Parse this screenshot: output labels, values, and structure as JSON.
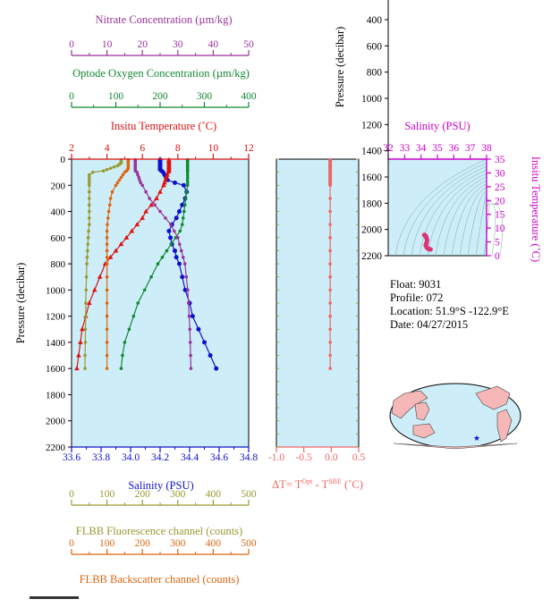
{
  "colors": {
    "nitrate": "#993399",
    "oxygen": "#118833",
    "temperature": "#dd1111",
    "salinity": "#1111cc",
    "fluorescence": "#999933",
    "backscatter": "#dd6611",
    "delta_t": "#ee6666",
    "plot_bg": "#cdeef8",
    "ts_axis": "#cc00cc",
    "black": "#000000"
  },
  "axes": {
    "nitrate": {
      "label": "Nitrate Concentration (µm/kg)",
      "ticks": [
        "0",
        "10",
        "20",
        "30",
        "40",
        "50"
      ]
    },
    "oxygen": {
      "label": "Optode Oxygen Concentration (µm/kg)",
      "ticks": [
        "0",
        "100",
        "200",
        "300",
        "400"
      ]
    },
    "temperature": {
      "label": "Insitu Temperature (˚C)",
      "ticks": [
        "2",
        "4",
        "6",
        "8",
        "10",
        "12"
      ]
    },
    "salinity": {
      "label": "Salinity (PSU)",
      "ticks": [
        "33.6",
        "33.8",
        "34.0",
        "34.2",
        "34.4",
        "34.6",
        "34.8"
      ]
    },
    "fluorescence": {
      "label": "FLBB Fluorescence channel (counts)",
      "ticks": [
        "0",
        "100",
        "200",
        "300",
        "400",
        "500"
      ]
    },
    "backscatter": {
      "label": "FLBB Backscatter channel (counts)",
      "ticks": [
        "0",
        "100",
        "200",
        "300",
        "400",
        "500"
      ]
    },
    "pressure": {
      "label": "Pressure (decibar)",
      "ticks": [
        "0",
        "200",
        "400",
        "600",
        "800",
        "1000",
        "1200",
        "1400",
        "1600",
        "1800",
        "2000",
        "2200"
      ]
    },
    "delta_t": {
      "label_main": "ΔT= T",
      "sup1": "Opt",
      "label_mid": " - T",
      "sup2": "SBE",
      "label_end": " (˚C)",
      "ticks": [
        "-1.0",
        "-0.5",
        "0.0",
        "0.5"
      ]
    },
    "ts_salinity": {
      "label": "Salinity (PSU)",
      "ticks": [
        "32",
        "33",
        "34",
        "35",
        "36",
        "37",
        "38"
      ]
    },
    "ts_temperature": {
      "label": "Insitu Temperature (˚C)",
      "ticks": [
        "0",
        "5",
        "10",
        "15",
        "20",
        "25",
        "30",
        "35"
      ]
    },
    "ts_pressure": {
      "ticks": [
        "400",
        "600",
        "800",
        "1000",
        "1200",
        "1400",
        "1600",
        "1800",
        "2000",
        "2200"
      ]
    }
  },
  "info": {
    "float": "Float:  9031",
    "profile": "Profile:  072",
    "location": "Location:  51.9°S  -122.9°E",
    "date": "Date:  04/27/2015"
  },
  "chart_data": [
    {
      "type": "line",
      "ylabel": "Pressure (decibar)",
      "ylim": [
        2200,
        0
      ],
      "pressure_levels": [
        5,
        10,
        20,
        30,
        40,
        50,
        60,
        70,
        80,
        90,
        100,
        120,
        140,
        160,
        180,
        200,
        250,
        300,
        350,
        400,
        450,
        500,
        550,
        600,
        650,
        700,
        750,
        800,
        900,
        1000,
        1100,
        1200,
        1300,
        1400,
        1500,
        1600
      ],
      "series": [
        {
          "name": "Salinity",
          "xlim": [
            33.6,
            34.8
          ],
          "values": [
            34.2,
            34.2,
            34.2,
            34.2,
            34.2,
            34.2,
            34.2,
            34.2,
            34.2,
            34.21,
            34.22,
            34.23,
            34.24,
            34.25,
            34.3,
            34.36,
            34.38,
            34.37,
            34.35,
            34.33,
            34.31,
            34.28,
            34.26,
            34.27,
            34.28,
            34.3,
            34.31,
            34.33,
            34.35,
            34.37,
            34.4,
            34.42,
            34.46,
            34.5,
            34.54,
            34.58
          ]
        },
        {
          "name": "Insitu Temperature",
          "xlim": [
            2,
            12
          ],
          "values": [
            7.5,
            7.5,
            7.5,
            7.5,
            7.5,
            7.5,
            7.5,
            7.5,
            7.5,
            7.5,
            7.45,
            7.4,
            7.35,
            7.3,
            7.25,
            7.2,
            7.0,
            6.8,
            6.5,
            6.2,
            6.0,
            5.7,
            5.4,
            5.1,
            4.8,
            4.5,
            4.2,
            3.9,
            3.6,
            3.3,
            3.0,
            2.8,
            2.6,
            2.5,
            2.4,
            2.3
          ]
        },
        {
          "name": "Optode Oxygen Concentration",
          "xlim": [
            0,
            400
          ],
          "values": [
            262,
            262,
            262,
            262,
            262,
            262,
            262,
            262,
            262,
            262,
            262,
            262,
            262,
            262,
            262,
            262,
            260,
            258,
            256,
            254,
            252,
            250,
            245,
            235,
            225,
            215,
            205,
            195,
            180,
            165,
            150,
            140,
            130,
            120,
            115,
            112
          ]
        },
        {
          "name": "Nitrate Concentration",
          "xlim": [
            0,
            50
          ],
          "values": [
            18,
            18,
            18,
            18,
            18,
            18,
            18,
            18,
            18,
            18,
            18.5,
            18.7,
            19,
            19.2,
            19.5,
            20,
            21,
            22,
            23.5,
            25,
            26.5,
            28,
            29,
            30,
            30.5,
            31,
            31.5,
            32,
            32.4,
            32.8,
            33,
            33.2,
            33.4,
            33.5,
            33.6,
            33.7
          ]
        },
        {
          "name": "FLBB Fluorescence channel",
          "xlim": [
            0,
            500
          ],
          "values": [
            140,
            140,
            140,
            140,
            135,
            130,
            120,
            110,
            100,
            90,
            60,
            50,
            50,
            50,
            50,
            50,
            50,
            50,
            50,
            50,
            50,
            50,
            48,
            47,
            46,
            45,
            44,
            43,
            42,
            41,
            40,
            40,
            39,
            39,
            38,
            38
          ]
        },
        {
          "name": "FLBB Backscatter channel",
          "xlim": [
            0,
            500
          ],
          "values": [
            160,
            160,
            160,
            160,
            160,
            160,
            160,
            160,
            158,
            155,
            150,
            145,
            140,
            135,
            130,
            125,
            115,
            110,
            108,
            105,
            103,
            101,
            100,
            100,
            100,
            100,
            100,
            100,
            100,
            100,
            100,
            100,
            100,
            100,
            100,
            100
          ]
        }
      ]
    },
    {
      "type": "line",
      "xlim": [
        -1.0,
        0.5
      ],
      "ylim": [
        2200,
        0
      ],
      "series": [
        {
          "name": "ΔT",
          "pressure": [
            5,
            100,
            200,
            300,
            400,
            500,
            600,
            700,
            800,
            900,
            1000,
            1100,
            1200,
            1300,
            1400,
            1500,
            1600
          ],
          "values": [
            -0.02,
            -0.02,
            -0.02,
            -0.02,
            -0.02,
            -0.02,
            -0.02,
            -0.02,
            -0.02,
            -0.02,
            -0.02,
            -0.02,
            -0.02,
            -0.02,
            -0.02,
            -0.02,
            -0.02
          ]
        }
      ]
    },
    {
      "type": "scatter",
      "xlim": [
        32,
        38
      ],
      "ylim": [
        0,
        35
      ],
      "series": [
        {
          "name": "T-S",
          "x": [
            34.2,
            34.22,
            34.25,
            34.28,
            34.31,
            34.35,
            34.37,
            34.33,
            34.29,
            34.3,
            34.35,
            34.42,
            34.5,
            34.58
          ],
          "y": [
            7.5,
            7.5,
            7.3,
            7.2,
            6.8,
            6.2,
            5.4,
            4.5,
            3.9,
            3.6,
            3.0,
            2.6,
            2.4,
            2.3
          ]
        }
      ]
    }
  ]
}
